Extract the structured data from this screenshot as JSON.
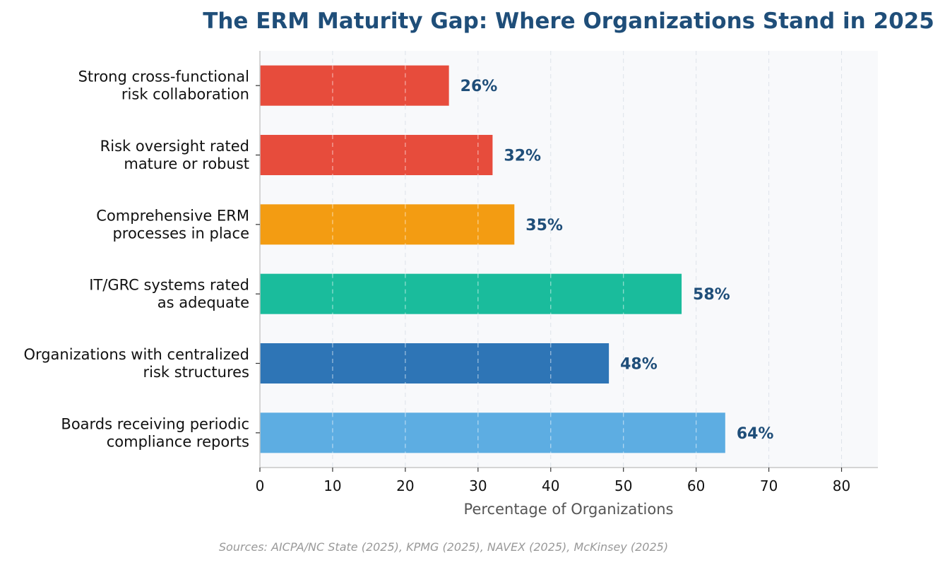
{
  "chart_data": {
    "type": "bar",
    "orientation": "horizontal",
    "title": "The ERM Maturity Gap: Where Organizations Stand in 2025",
    "xlabel": "Percentage of Organizations",
    "ylabel": "",
    "xlim": [
      0,
      85
    ],
    "xticks": [
      0,
      10,
      20,
      30,
      40,
      50,
      60,
      70,
      80
    ],
    "grid": "vertical dashed",
    "categories": [
      [
        "Strong cross-functional",
        "risk collaboration"
      ],
      [
        "Risk oversight rated",
        "mature or robust"
      ],
      [
        "Comprehensive ERM",
        "processes in place"
      ],
      [
        "IT/GRC systems rated",
        "as adequate"
      ],
      [
        "Organizations with centralized",
        "risk structures"
      ],
      [
        "Boards receiving periodic",
        "compliance reports"
      ]
    ],
    "values": [
      26,
      32,
      35,
      58,
      48,
      64
    ],
    "value_labels": [
      "26%",
      "32%",
      "35%",
      "58%",
      "48%",
      "64%"
    ],
    "colors": [
      "#e74c3c",
      "#e74c3c",
      "#f39c12",
      "#1abc9c",
      "#2e75b6",
      "#5dade2"
    ],
    "source": "Sources: AICPA/NC State (2025), KPMG (2025), NAVEX (2025), McKinsey (2025)"
  }
}
